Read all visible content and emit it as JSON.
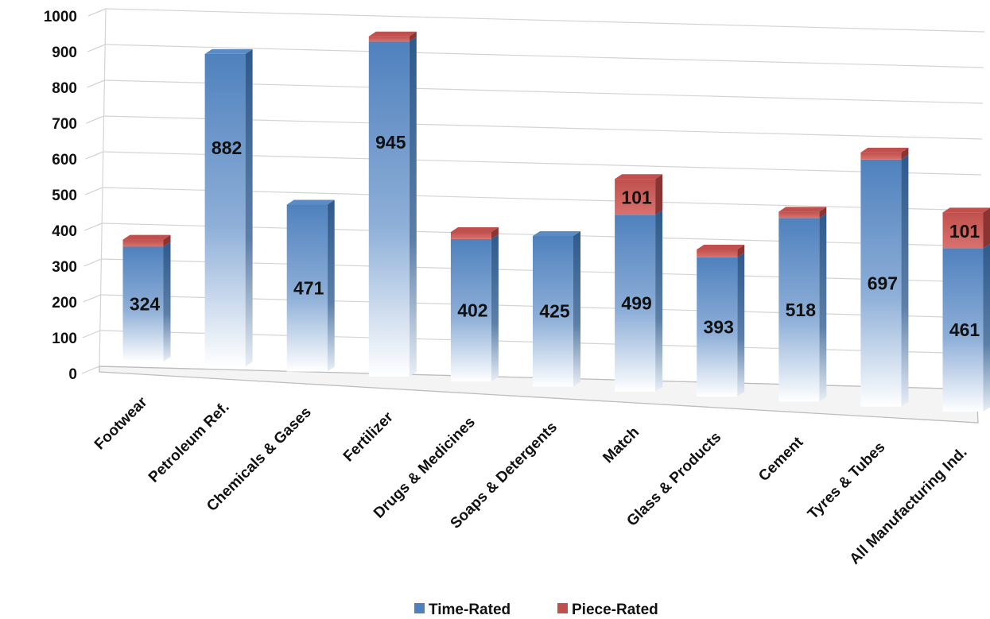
{
  "chart_data": {
    "type": "bar",
    "stacked": true,
    "view": "3d",
    "title": "",
    "xlabel": "",
    "ylabel": "",
    "ylim": [
      0,
      1000
    ],
    "yticks": [
      0,
      100,
      200,
      300,
      400,
      500,
      600,
      700,
      800,
      900,
      1000
    ],
    "grid": true,
    "legend_position": "bottom",
    "categories": [
      "Footwear",
      "Petroleum Ref.",
      "Chemicals & Gases",
      "Fertilizer",
      "Drugs & Medicines",
      "Soaps & Detergents",
      "Match",
      "Glass & Products",
      "Cement",
      "Tyres & Tubes",
      "All Manufacturing Ind."
    ],
    "series": [
      {
        "name": "Time-Rated",
        "color": "#4f81bd",
        "values": [
          324,
          882,
          471,
          945,
          402,
          425,
          499,
          393,
          518,
          697,
          461
        ],
        "labels": [
          "324",
          "882",
          "471",
          "945",
          "402",
          "425",
          "499",
          "393",
          "518",
          "697",
          "461"
        ]
      },
      {
        "name": "Piece-Rated",
        "color": "#c0504d",
        "values": [
          20,
          0,
          0,
          15,
          20,
          0,
          101,
          22,
          18,
          20,
          101
        ],
        "labels": [
          "",
          "",
          "",
          "",
          "",
          "",
          "101",
          "",
          "",
          "",
          "101"
        ]
      }
    ]
  }
}
